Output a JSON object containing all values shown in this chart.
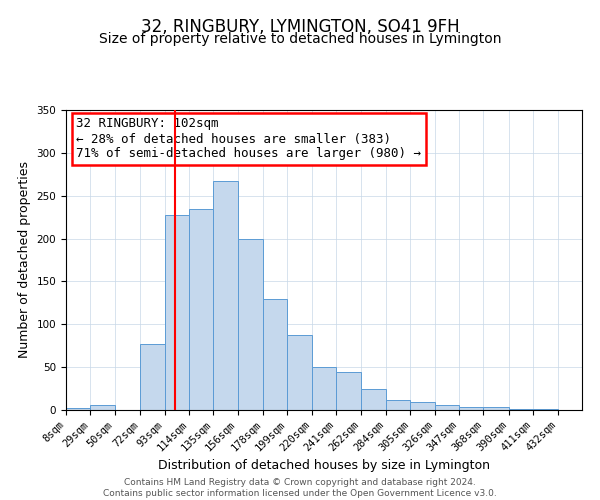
{
  "title": "32, RINGBURY, LYMINGTON, SO41 9FH",
  "subtitle": "Size of property relative to detached houses in Lymington",
  "xlabel": "Distribution of detached houses by size in Lymington",
  "ylabel": "Number of detached properties",
  "bin_labels": [
    "8sqm",
    "29sqm",
    "50sqm",
    "72sqm",
    "93sqm",
    "114sqm",
    "135sqm",
    "156sqm",
    "178sqm",
    "199sqm",
    "220sqm",
    "241sqm",
    "262sqm",
    "284sqm",
    "305sqm",
    "326sqm",
    "347sqm",
    "368sqm",
    "390sqm",
    "411sqm",
    "432sqm"
  ],
  "bin_edges": [
    8,
    29,
    50,
    72,
    93,
    114,
    135,
    156,
    178,
    199,
    220,
    241,
    262,
    284,
    305,
    326,
    347,
    368,
    390,
    411,
    432
  ],
  "bar_heights": [
    2,
    6,
    0,
    77,
    228,
    235,
    267,
    199,
    130,
    87,
    50,
    44,
    25,
    12,
    9,
    6,
    4,
    3,
    1,
    1,
    0
  ],
  "bar_color": "#c5d8ed",
  "bar_edge_color": "#5b9bd5",
  "grid_color": "#c8d8e8",
  "property_size": 102,
  "vline_color": "red",
  "annotation_line1": "32 RINGBURY: 102sqm",
  "annotation_line2": "← 28% of detached houses are smaller (383)",
  "annotation_line3": "71% of semi-detached houses are larger (980) →",
  "annotation_box_color": "red",
  "ylim": [
    0,
    350
  ],
  "footer_line1": "Contains HM Land Registry data © Crown copyright and database right 2024.",
  "footer_line2": "Contains public sector information licensed under the Open Government Licence v3.0.",
  "title_fontsize": 12,
  "subtitle_fontsize": 10,
  "axis_label_fontsize": 9,
  "tick_fontsize": 7.5,
  "annotation_fontsize": 9,
  "footer_fontsize": 6.5
}
